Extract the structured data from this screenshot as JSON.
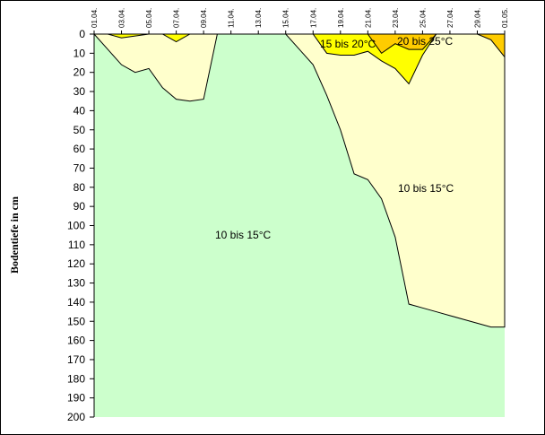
{
  "chart_data": {
    "type": "area",
    "title": "",
    "xlabel": "",
    "ylabel": "Bodentiefe in cm",
    "y_reversed": true,
    "ylim": [
      0,
      200
    ],
    "yticks": [
      0,
      10,
      20,
      30,
      40,
      50,
      60,
      70,
      80,
      90,
      100,
      110,
      120,
      130,
      140,
      150,
      160,
      170,
      180,
      190,
      200
    ],
    "x_axis_position": "top",
    "x_tick_labels": [
      "01.04.",
      "03.04.",
      "05.04.",
      "07.04.",
      "09.04.",
      "11.04.",
      "13.04.",
      "15.04.",
      "17.04.",
      "19.04.",
      "21.04.",
      "23.04.",
      "25.04.",
      "27.04.",
      "29.04.",
      "01.05."
    ],
    "x_days": [
      "01.04.",
      "02.04.",
      "03.04.",
      "04.04.",
      "05.04.",
      "06.04.",
      "07.04.",
      "08.04.",
      "09.04.",
      "10.04.",
      "11.04.",
      "12.04.",
      "13.04.",
      "14.04.",
      "15.04.",
      "16.04.",
      "17.04.",
      "18.04.",
      "19.04.",
      "20.04.",
      "21.04.",
      "22.04.",
      "23.04.",
      "24.04.",
      "25.04.",
      "26.04.",
      "27.04.",
      "28.04.",
      "29.04.",
      "30.04.",
      "01.05."
    ],
    "gridlines": false,
    "series": [
      {
        "name": "10 bis 15°C",
        "color": "#ffffcc",
        "depth_cm": [
          0,
          8,
          16,
          20,
          18,
          28,
          34,
          35,
          34,
          0,
          0,
          0,
          0,
          0,
          0,
          8,
          16,
          32,
          50,
          73,
          76,
          86,
          106,
          141,
          143,
          145,
          147,
          149,
          151,
          153,
          153
        ]
      },
      {
        "name": "15 bis 20°C",
        "color": "#ffff00",
        "depth_cm": [
          0,
          0,
          2,
          1,
          0,
          0,
          4,
          0,
          0,
          0,
          0,
          0,
          0,
          0,
          0,
          0,
          0,
          10,
          11,
          11,
          9,
          14,
          18,
          26,
          11,
          0,
          0,
          0,
          0,
          0,
          0
        ]
      },
      {
        "name": "20 bis 25°C",
        "color": "#ffcc00",
        "depth_cm": [
          0,
          0,
          0,
          0,
          0,
          0,
          0,
          0,
          0,
          0,
          0,
          0,
          0,
          0,
          0,
          0,
          0,
          0,
          0,
          0,
          0,
          10,
          5,
          8,
          8,
          0,
          0,
          0,
          0,
          3,
          12
        ]
      }
    ],
    "annotations": [
      "10 bis 15°C",
      "10 bis 15°C",
      "15 bis 20°C",
      "20 bis 25°C"
    ],
    "colors": {
      "background_region": "#ccffcc",
      "band_1": "#ffffcc",
      "band_2": "#ffff00",
      "band_3": "#ffcc00",
      "outline": "#000000"
    }
  }
}
